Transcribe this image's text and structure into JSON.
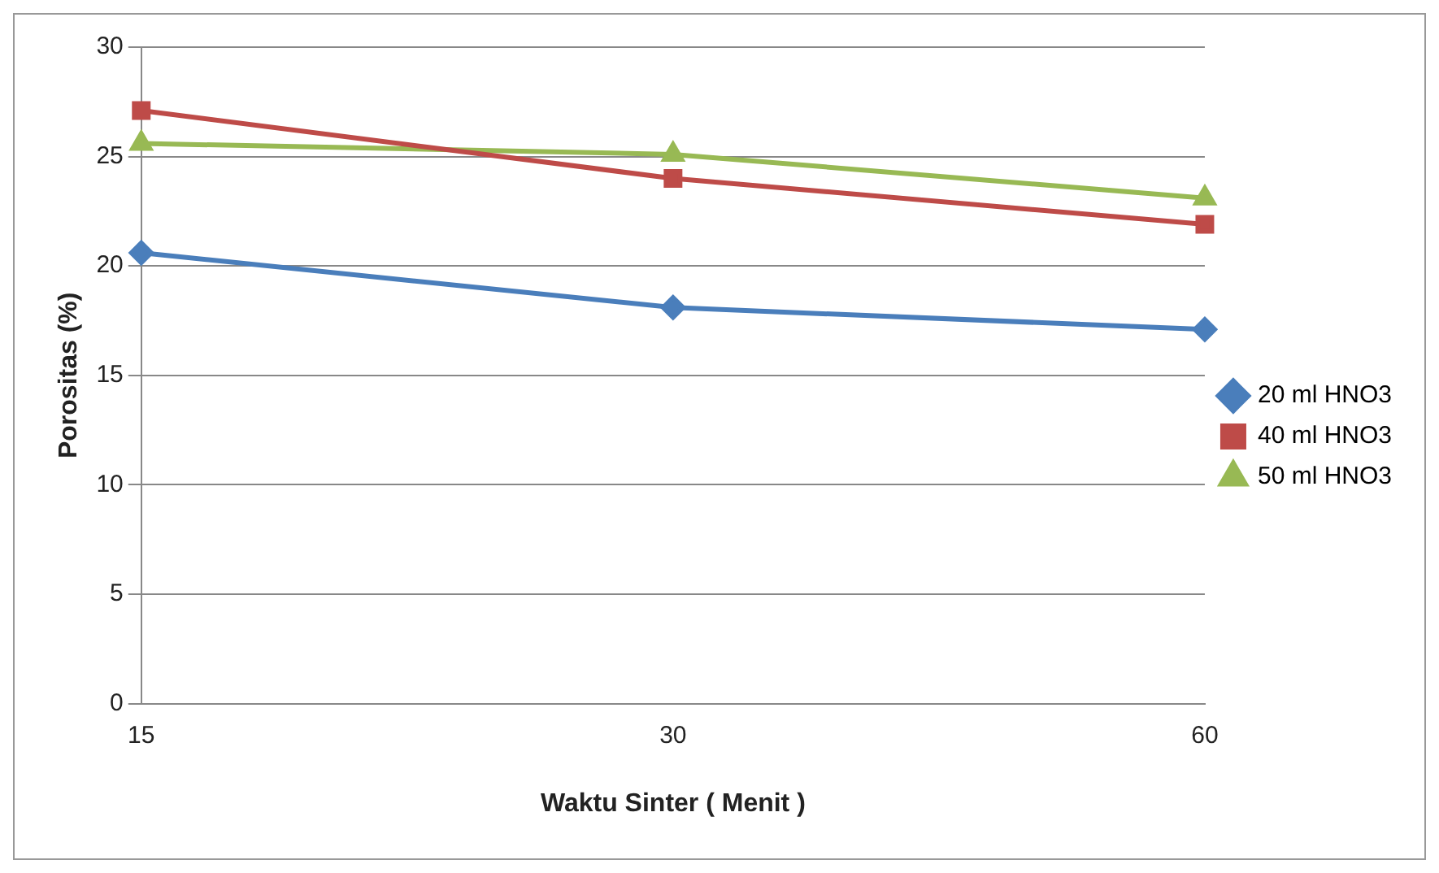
{
  "chart_data": {
    "type": "line",
    "xlabel": "Waktu Sinter ( Menit )",
    "ylabel": "Porositas (%)",
    "categories": [
      "15",
      "30",
      "60"
    ],
    "series": [
      {
        "name": "20 ml HNO3",
        "color": "#4a7ebb",
        "values": [
          20.6,
          18.1,
          17.1
        ],
        "marker": "diamond"
      },
      {
        "name": "40 ml HNO3",
        "color": "#be4b48",
        "values": [
          27.1,
          24.0,
          21.9
        ],
        "marker": "square"
      },
      {
        "name": "50 ml HNO3",
        "color": "#98b954",
        "values": [
          25.6,
          25.1,
          23.1
        ],
        "marker": "triangle"
      }
    ],
    "ylim": [
      0,
      30
    ],
    "yticks": [
      0,
      5,
      10,
      15,
      20,
      25,
      30
    ],
    "grid": "y",
    "legend": "right"
  }
}
